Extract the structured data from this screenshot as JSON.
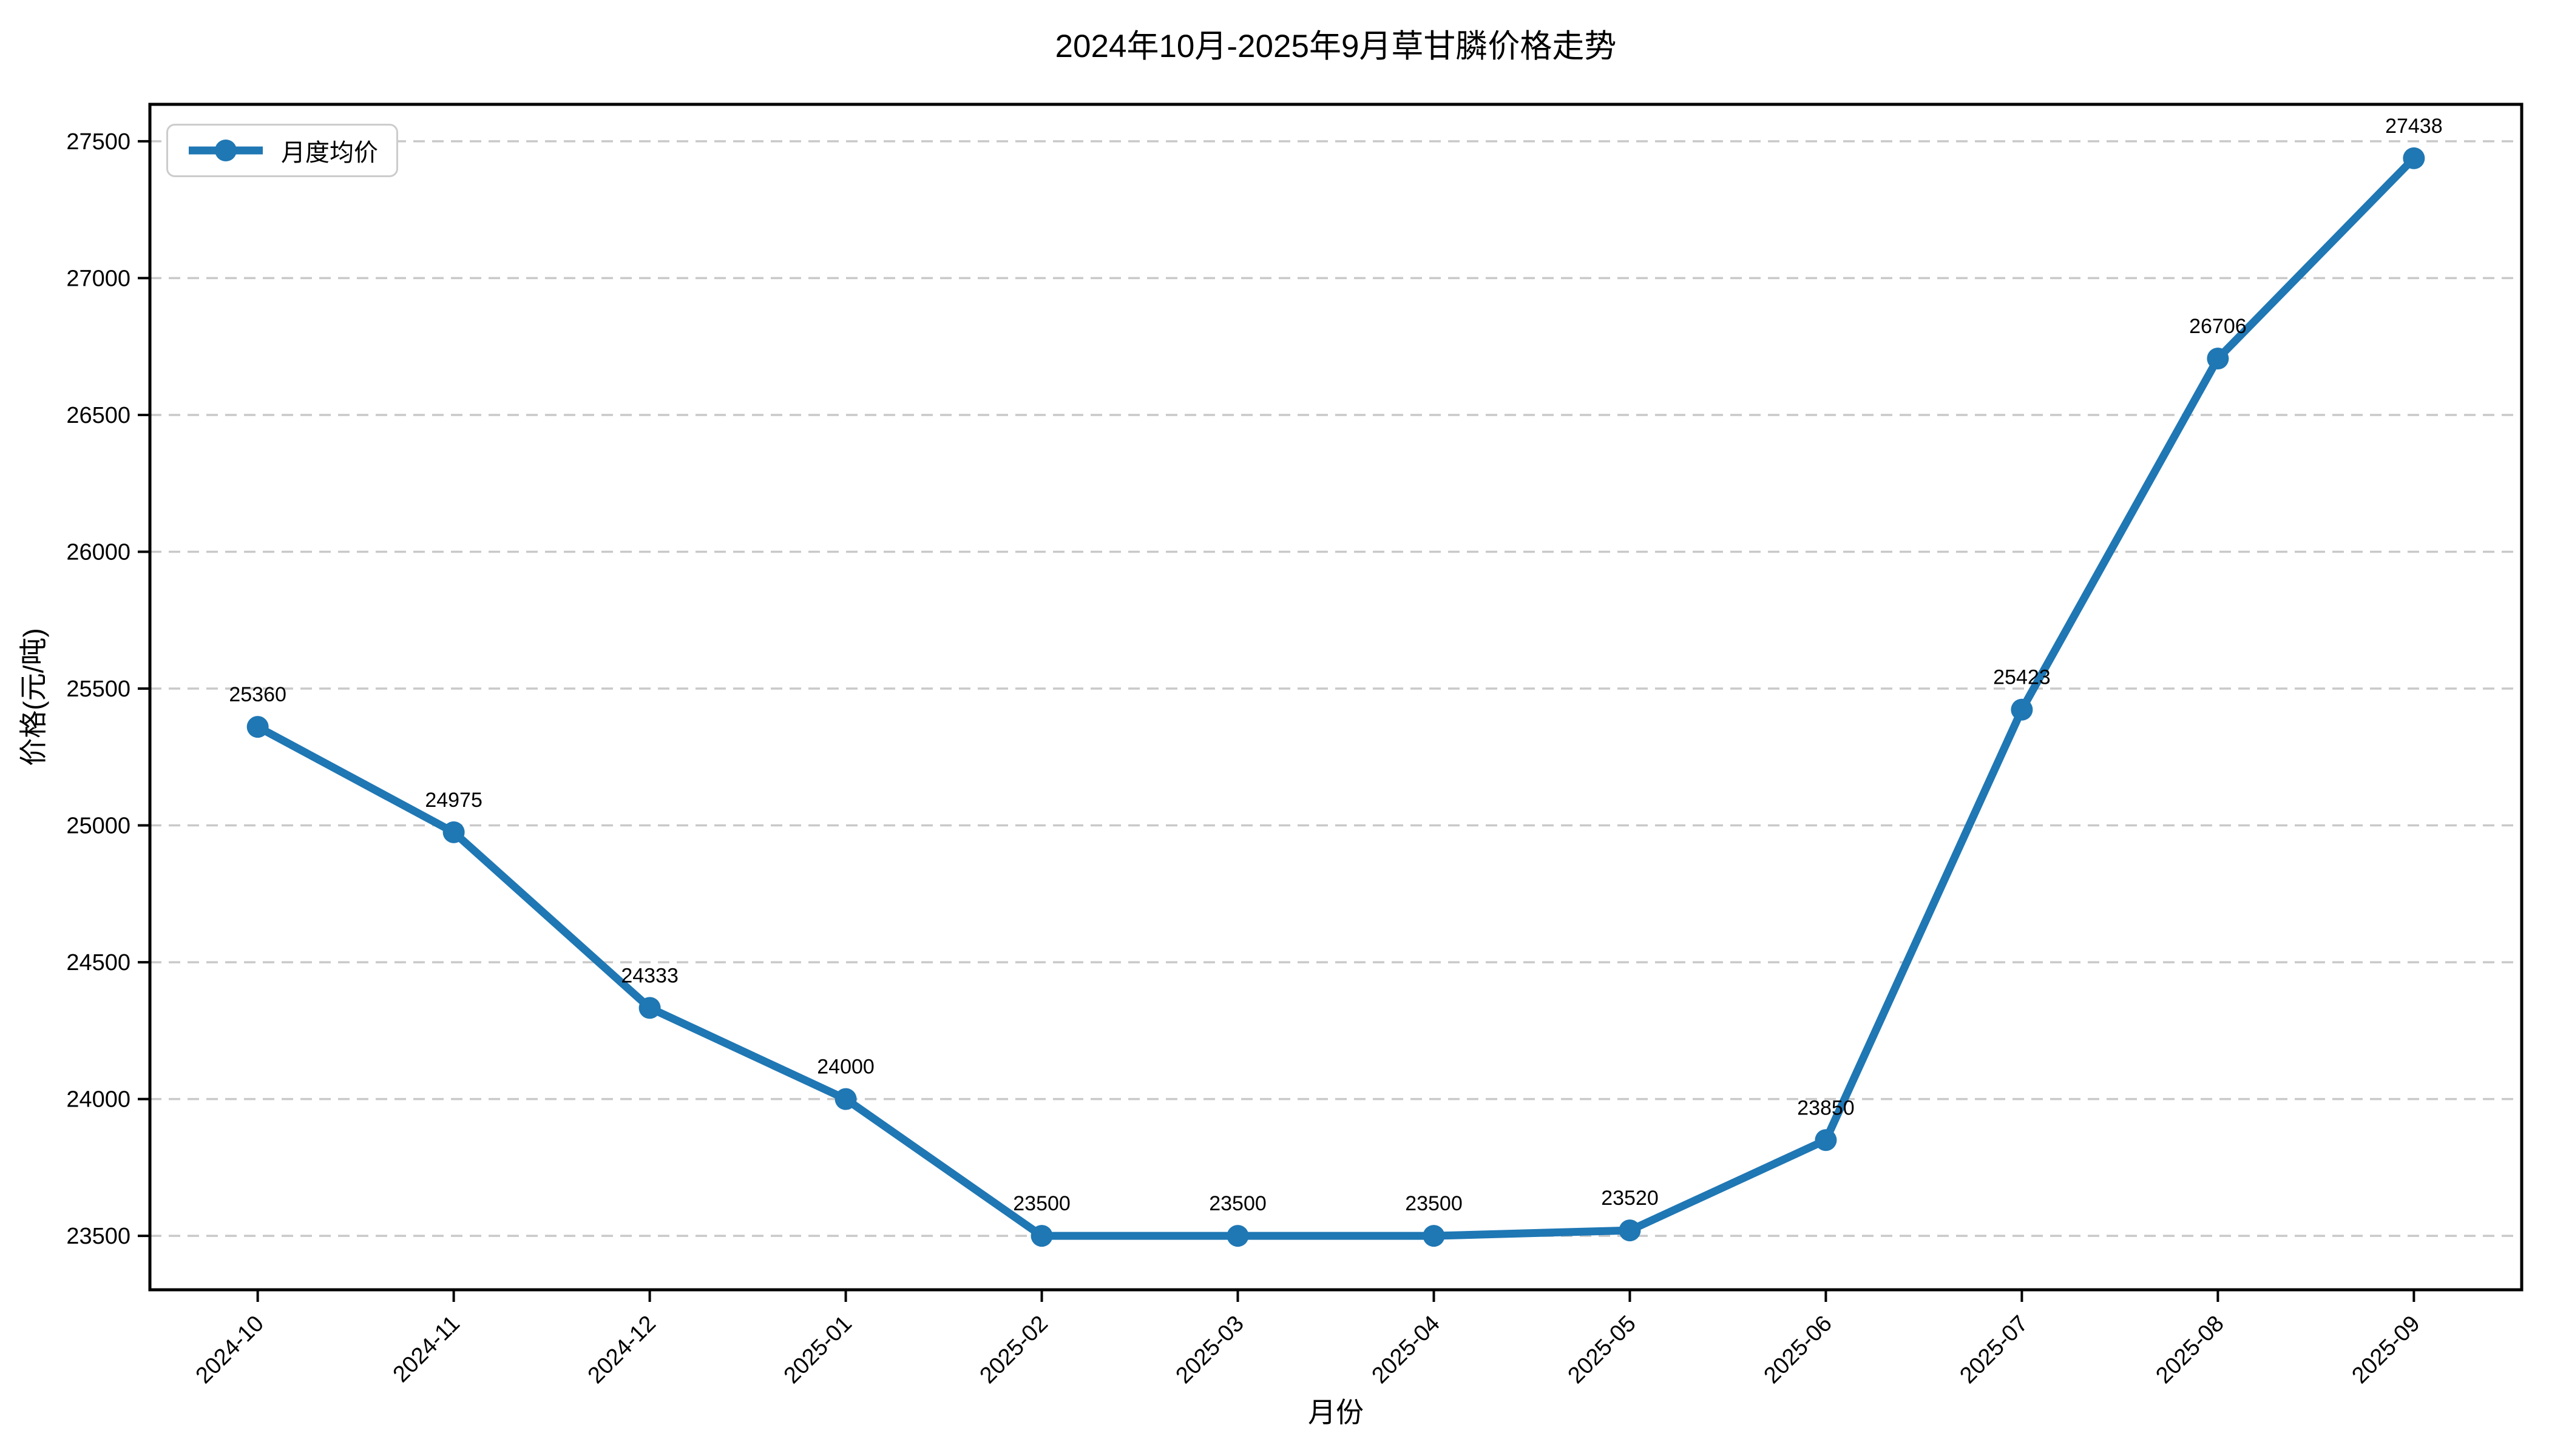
{
  "chart_data": {
    "type": "line",
    "title": "2024年10月-2025年9月草甘膦价格走势",
    "xlabel": "月份",
    "ylabel": "价格(元/吨)",
    "legend": {
      "label": "月度均价",
      "position": "upper left"
    },
    "categories": [
      "2024-10",
      "2024-11",
      "2024-12",
      "2025-01",
      "2025-02",
      "2025-03",
      "2025-04",
      "2025-05",
      "2025-06",
      "2025-07",
      "2025-08",
      "2025-09"
    ],
    "series": [
      {
        "name": "月度均价",
        "values": [
          25360,
          24975,
          24333,
          24000,
          23500,
          23500,
          23500,
          23520,
          23850,
          25423,
          26706,
          27438
        ]
      }
    ],
    "show_value_labels": true,
    "yticks": [
      23500,
      24000,
      24500,
      25000,
      25500,
      26000,
      26500,
      27000,
      27500
    ],
    "ylim": [
      23303,
      27635
    ],
    "x_tick_rotation": 45,
    "grid": {
      "axis": "y",
      "style": "dashed",
      "color": "#c9c9c9"
    },
    "colors": {
      "line": "#1f77b4",
      "marker": "#1f77b4",
      "text": "#000000",
      "axis": "#000000",
      "legend_border": "#cccccc",
      "background": "#ffffff"
    }
  }
}
